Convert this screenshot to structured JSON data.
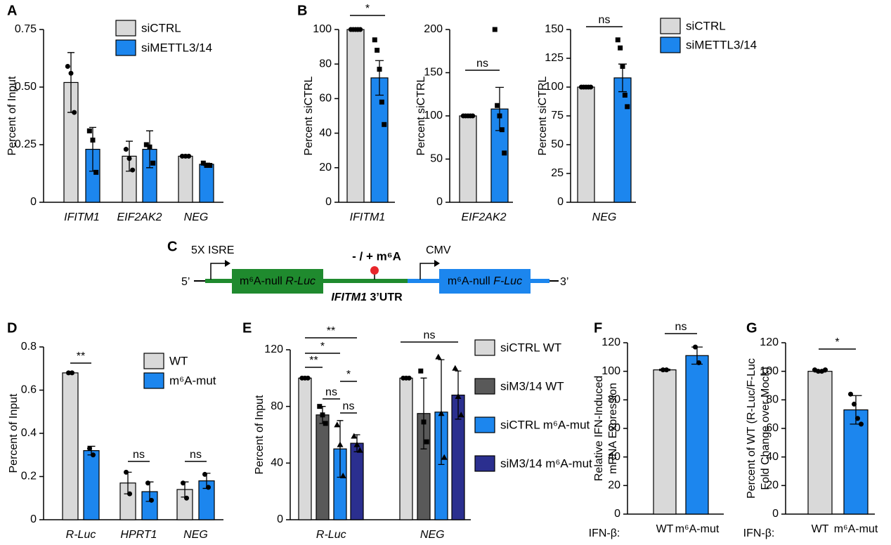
{
  "chart_data": [
    {
      "type": "bar",
      "panel": "A",
      "ylabel": [
        "Percent of Input"
      ],
      "categories": [
        "IFITM1",
        "EIF2AK2",
        "NEG"
      ],
      "italic_categories": true,
      "ylim": [
        0,
        0.75
      ],
      "yticks": [
        0,
        0.25,
        {
          "value": 0.5,
          "label": "0.50"
        },
        0.75
      ],
      "legend": true,
      "significance": [],
      "series": [
        {
          "name": "siCTRL",
          "color": "#d9d9d9",
          "marker": "circle",
          "values": [
            0.52,
            0.2,
            0.2
          ],
          "errors": [
            0.13,
            0.065,
            0.005
          ],
          "points": [
            [
              0.59,
              0.56,
              0.39
            ],
            [
              0.23,
              0.19,
              0.14
            ],
            [
              0.2,
              0.2,
              0.2
            ]
          ]
        },
        {
          "name": "siMETTL3/14",
          "color": "#1c86ee",
          "marker": "square",
          "values": [
            0.23,
            0.23,
            0.165
          ],
          "errors": [
            0.095,
            0.08,
            0.005
          ],
          "points": [
            [
              0.31,
              0.27,
              0.13
            ],
            [
              0.25,
              0.24,
              0.17
            ],
            [
              0.17,
              0.16,
              0.16
            ]
          ]
        }
      ]
    },
    {
      "type": "bar",
      "panel": "B",
      "ylabel": [
        "Percent siCTRL"
      ],
      "categories": [
        "IFITM1"
      ],
      "italic_categories": true,
      "ylim": [
        0,
        100
      ],
      "yticks": [
        0,
        20,
        40,
        60,
        80,
        100
      ],
      "legend": false,
      "significance": [
        "*"
      ],
      "series": [
        {
          "color": "#d9d9d9",
          "marker": "circle",
          "values": [
            100
          ],
          "errors": [
            0
          ],
          "points": [
            [
              100,
              100,
              100,
              100,
              100
            ]
          ]
        },
        {
          "color": "#1c86ee",
          "marker": "square",
          "values": [
            72
          ],
          "errors": [
            10
          ],
          "points": [
            [
              94,
              88,
              77,
              58,
              45
            ]
          ]
        }
      ]
    },
    {
      "type": "bar",
      "ylabel": [
        "Percent siCTRL"
      ],
      "categories": [
        "EIF2AK2"
      ],
      "italic_categories": true,
      "ylim": [
        0,
        200
      ],
      "yticks": [
        0,
        50,
        100,
        150,
        200
      ],
      "legend": false,
      "significance": [
        "ns"
      ],
      "series": [
        {
          "color": "#d9d9d9",
          "marker": "circle",
          "values": [
            100
          ],
          "errors": [
            0
          ],
          "points": [
            [
              100,
              100,
              100,
              100,
              100
            ]
          ]
        },
        {
          "color": "#1c86ee",
          "marker": "square",
          "values": [
            108
          ],
          "errors": [
            25
          ],
          "points": [
            [
              200,
              112,
              100,
              84,
              57
            ]
          ]
        }
      ]
    },
    {
      "type": "bar",
      "ylabel": [
        "Percent siCTRL"
      ],
      "categories": [
        "NEG"
      ],
      "italic_categories": true,
      "ylim": [
        0,
        150
      ],
      "yticks": [
        0,
        25,
        50,
        75,
        100,
        125,
        150
      ],
      "legend": true,
      "significance": [
        "ns"
      ],
      "series": [
        {
          "name": "siCTRL",
          "color": "#d9d9d9",
          "marker": "circle",
          "values": [
            100
          ],
          "errors": [
            0
          ],
          "points": [
            [
              100,
              100,
              100,
              100,
              100
            ]
          ]
        },
        {
          "name": "siMETTL3/14",
          "color": "#1c86ee",
          "marker": "square",
          "values": [
            108
          ],
          "errors": [
            12
          ],
          "points": [
            [
              141,
              134,
              118,
              93,
              83
            ]
          ]
        }
      ]
    },
    {
      "type": "bar",
      "panel": "D",
      "ylabel": [
        "Percent of Input"
      ],
      "categories": [
        "R-Luc",
        "HPRT1",
        "NEG"
      ],
      "italic_categories": true,
      "ylim": [
        0,
        0.8
      ],
      "yticks": [
        0,
        0.2,
        0.4,
        0.6,
        0.8
      ],
      "legend": true,
      "significance": [
        "**",
        "ns",
        "ns"
      ],
      "series": [
        {
          "name": "WT",
          "color": "#d9d9d9",
          "marker": "circle",
          "values": [
            0.68,
            0.17,
            0.14
          ],
          "errors": [
            0.005,
            0.05,
            0.035
          ],
          "points": [
            [
              0.68,
              0.68
            ],
            [
              0.22,
              0.12
            ],
            [
              0.17,
              0.1
            ]
          ]
        },
        {
          "name": "m⁶A-mut",
          "color": "#1c86ee",
          "marker": "circle",
          "values": [
            0.32,
            0.13,
            0.18
          ],
          "errors": [
            0.02,
            0.045,
            0.035
          ],
          "points": [
            [
              0.33,
              0.3
            ],
            [
              0.17,
              0.09
            ],
            [
              0.21,
              0.15
            ]
          ]
        }
      ]
    },
    {
      "type": "bar",
      "panel": "E",
      "ylabel": [
        "Percent of Input"
      ],
      "categories": [
        "R-Luc",
        "NEG"
      ],
      "italic_categories": true,
      "ylim": [
        0,
        120
      ],
      "yticks": [
        0,
        40,
        80,
        120
      ],
      "legend": true,
      "significance": [
        "**",
        "*",
        "**",
        "*",
        "ns",
        "ns",
        "ns"
      ],
      "series": [
        {
          "name": "siCTRL WT",
          "color": "#d9d9d9",
          "marker": "circle",
          "values": [
            100,
            100
          ],
          "errors": [
            0,
            0
          ],
          "points": [
            [
              100,
              100,
              100
            ],
            [
              100,
              100,
              100
            ]
          ]
        },
        {
          "name": "siM3/14 WT",
          "color": "#595959",
          "marker": "square",
          "values": [
            74,
            75
          ],
          "errors": [
            6,
            25
          ],
          "points": [
            [
              80,
              74,
              68
            ],
            [
              105,
              69,
              55
            ]
          ]
        },
        {
          "name": "siCTRL m⁶A-mut",
          "color": "#1c86ee",
          "marker": "triangle",
          "values": [
            50,
            76
          ],
          "errors": [
            20,
            37
          ],
          "points": [
            [
              67,
              53,
              31
            ],
            [
              115,
              75,
              44
            ]
          ]
        },
        {
          "name": "siM3/14 m⁶A-mut",
          "color": "#2b2f8f",
          "marker": "triangle",
          "values": [
            54,
            88
          ],
          "errors": [
            6,
            17
          ],
          "points": [
            [
              59,
              53,
              49
            ],
            [
              107,
              87,
              74
            ]
          ]
        }
      ]
    },
    {
      "type": "bar",
      "panel": "F",
      "ylabel": [
        "Relative IFN-Induced",
        "mRNA Expression"
      ],
      "xprefix": "IFN-β:",
      "categories": [
        "WT",
        "m⁶A-mut"
      ],
      "italic_categories": false,
      "ylim": [
        0,
        120
      ],
      "yticks": [
        0,
        20,
        40,
        60,
        80,
        100,
        120
      ],
      "legend": false,
      "significance": [
        "ns"
      ],
      "series": [
        {
          "colors": [
            "#d9d9d9",
            "#1c86ee"
          ],
          "marker": "circle",
          "values": [
            101,
            111
          ],
          "errors": [
            0.5,
            6
          ],
          "points": [
            [
              101,
              101
            ],
            [
              117,
              106
            ]
          ]
        }
      ]
    },
    {
      "type": "bar",
      "panel": "G",
      "ylabel": [
        "Percent of WT (R-Luc/F-Luc",
        "Fold Change over Mock)"
      ],
      "xprefix": "IFN-β:",
      "categories": [
        "WT",
        "m⁶A-mut"
      ],
      "italic_categories": false,
      "ylim": [
        0,
        120
      ],
      "yticks": [
        0,
        20,
        40,
        60,
        80,
        100,
        120
      ],
      "legend": false,
      "significance": [
        "*"
      ],
      "series": [
        {
          "colors": [
            "#d9d9d9",
            "#1c86ee"
          ],
          "marker": "circle",
          "values": [
            100,
            73
          ],
          "errors": [
            0.5,
            10
          ],
          "points": [
            [
              101,
              100,
              100,
              101
            ],
            [
              84,
              77,
              67,
              63
            ]
          ]
        }
      ]
    }
  ],
  "diagram": {
    "panel": "C",
    "promoter1": "5X ISRE",
    "promoter2": "CMV",
    "five_prime": "5’",
    "three_prime": "3’",
    "m6a_site": "- / + m⁶A",
    "rluc": [
      "m⁶A-null ",
      "R-Luc"
    ],
    "utr": [
      "IFITM1",
      " 3’UTR"
    ],
    "fluc": [
      "m⁶A-null ",
      "F-Luc"
    ]
  }
}
